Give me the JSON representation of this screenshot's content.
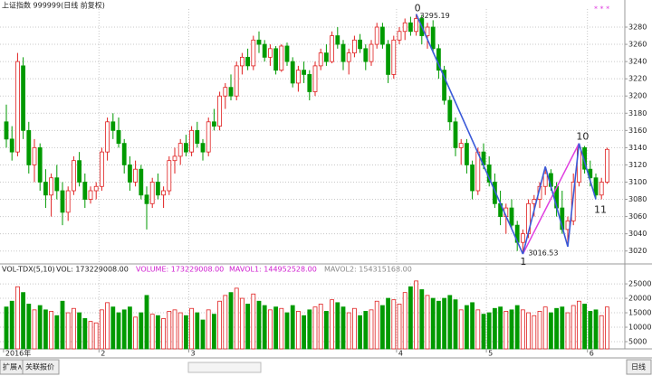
{
  "header": {
    "title": "上证指数 999999(日线 前复权)",
    "marks": "* * *"
  },
  "chart_data": {
    "type": "candlestick",
    "ylim": [
      3005,
      3301
    ],
    "yticks": [
      3020,
      3040,
      3060,
      3080,
      3100,
      3120,
      3140,
      3160,
      3180,
      3200,
      3220,
      3240,
      3260,
      3280
    ],
    "grid": true,
    "up_color": "#e02020",
    "down_color": "#009a00",
    "wave_labels": [
      "0",
      "1",
      "10",
      "11"
    ],
    "categories": [
      "2016年",
      null,
      null,
      null,
      null,
      null,
      null,
      null,
      null,
      null,
      null,
      null,
      null,
      null,
      null,
      null,
      null,
      "2",
      null,
      null,
      null,
      null,
      null,
      null,
      null,
      null,
      null,
      null,
      null,
      null,
      null,
      null,
      null,
      "3",
      null,
      null,
      null,
      null,
      null,
      null,
      null,
      null,
      null,
      null,
      null,
      null,
      null,
      null,
      null,
      null,
      null,
      null,
      null,
      null,
      null,
      null,
      null,
      null,
      null,
      null,
      null,
      null,
      null,
      null,
      null,
      null,
      null,
      null,
      null,
      null,
      "4",
      null,
      null,
      null,
      null,
      null,
      null,
      null,
      null,
      null,
      null,
      null,
      null,
      null,
      null,
      null,
      "5",
      null,
      null,
      null,
      null,
      null,
      null,
      null,
      null,
      null,
      null,
      null,
      null,
      null,
      null,
      null,
      null,
      null,
      "6",
      null,
      null,
      null
    ],
    "candles": [
      [
        3170,
        3190,
        3140,
        3150
      ],
      [
        3150,
        3165,
        3125,
        3135
      ],
      [
        3135,
        3250,
        3130,
        3240
      ],
      [
        3235,
        3245,
        3150,
        3160
      ],
      [
        3160,
        3170,
        3110,
        3120
      ],
      [
        3120,
        3150,
        3100,
        3140
      ],
      [
        3140,
        3145,
        3090,
        3100
      ],
      [
        3100,
        3115,
        3070,
        3085
      ],
      [
        3085,
        3110,
        3060,
        3105
      ],
      [
        3105,
        3120,
        3080,
        3090
      ],
      [
        3090,
        3100,
        3050,
        3065
      ],
      [
        3065,
        3095,
        3055,
        3090
      ],
      [
        3090,
        3130,
        3085,
        3125
      ],
      [
        3125,
        3135,
        3095,
        3100
      ],
      [
        3100,
        3110,
        3070,
        3080
      ],
      [
        3080,
        3095,
        3075,
        3090
      ],
      [
        3090,
        3100,
        3080,
        3095
      ],
      [
        3095,
        3140,
        3090,
        3135
      ],
      [
        3135,
        3175,
        3125,
        3170
      ],
      [
        3170,
        3180,
        3150,
        3160
      ],
      [
        3160,
        3175,
        3140,
        3145
      ],
      [
        3145,
        3150,
        3110,
        3120
      ],
      [
        3120,
        3130,
        3090,
        3100
      ],
      [
        3100,
        3125,
        3095,
        3115
      ],
      [
        3115,
        3120,
        3080,
        3085
      ],
      [
        3085,
        3095,
        3045,
        3075
      ],
      [
        3075,
        3105,
        3070,
        3100
      ],
      [
        3100,
        3110,
        3080,
        3085
      ],
      [
        3085,
        3095,
        3070,
        3090
      ],
      [
        3090,
        3130,
        3085,
        3125
      ],
      [
        3125,
        3140,
        3110,
        3130
      ],
      [
        3130,
        3150,
        3120,
        3145
      ],
      [
        3145,
        3155,
        3130,
        3135
      ],
      [
        3135,
        3165,
        3130,
        3160
      ],
      [
        3160,
        3170,
        3140,
        3145
      ],
      [
        3145,
        3150,
        3125,
        3135
      ],
      [
        3135,
        3175,
        3130,
        3170
      ],
      [
        3170,
        3185,
        3160,
        3165
      ],
      [
        3165,
        3205,
        3160,
        3200
      ],
      [
        3200,
        3215,
        3185,
        3210
      ],
      [
        3210,
        3225,
        3195,
        3200
      ],
      [
        3200,
        3240,
        3195,
        3235
      ],
      [
        3235,
        3250,
        3225,
        3245
      ],
      [
        3245,
        3255,
        3230,
        3235
      ],
      [
        3235,
        3270,
        3230,
        3265
      ],
      [
        3265,
        3275,
        3250,
        3260
      ],
      [
        3260,
        3265,
        3240,
        3245
      ],
      [
        3245,
        3260,
        3235,
        3255
      ],
      [
        3255,
        3258,
        3225,
        3230
      ],
      [
        3230,
        3260,
        3228,
        3258
      ],
      [
        3258,
        3262,
        3235,
        3240
      ],
      [
        3240,
        3245,
        3210,
        3215
      ],
      [
        3215,
        3235,
        3205,
        3230
      ],
      [
        3230,
        3240,
        3215,
        3225
      ],
      [
        3225,
        3230,
        3195,
        3205
      ],
      [
        3205,
        3240,
        3200,
        3235
      ],
      [
        3235,
        3255,
        3230,
        3250
      ],
      [
        3250,
        3260,
        3235,
        3240
      ],
      [
        3240,
        3275,
        3238,
        3270
      ],
      [
        3270,
        3280,
        3255,
        3260
      ],
      [
        3260,
        3265,
        3230,
        3240
      ],
      [
        3240,
        3255,
        3225,
        3250
      ],
      [
        3250,
        3270,
        3245,
        3265
      ],
      [
        3265,
        3272,
        3250,
        3255
      ],
      [
        3255,
        3260,
        3230,
        3240
      ],
      [
        3240,
        3265,
        3235,
        3260
      ],
      [
        3260,
        3285,
        3255,
        3280
      ],
      [
        3280,
        3285,
        3255,
        3260
      ],
      [
        3260,
        3265,
        3215,
        3225
      ],
      [
        3225,
        3270,
        3220,
        3265
      ],
      [
        3265,
        3280,
        3260,
        3275
      ],
      [
        3275,
        3290,
        3265,
        3285
      ],
      [
        3285,
        3292,
        3270,
        3275
      ],
      [
        3275,
        3295.19,
        3270,
        3290
      ],
      [
        3290,
        3294,
        3260,
        3270
      ],
      [
        3270,
        3285,
        3255,
        3280
      ],
      [
        3280,
        3288,
        3250,
        3255
      ],
      [
        3255,
        3260,
        3220,
        3230
      ],
      [
        3230,
        3235,
        3190,
        3195
      ],
      [
        3195,
        3200,
        3160,
        3170
      ],
      [
        3170,
        3175,
        3130,
        3140
      ],
      [
        3140,
        3150,
        3120,
        3145
      ],
      [
        3145,
        3150,
        3110,
        3120
      ],
      [
        3120,
        3125,
        3080,
        3090
      ],
      [
        3090,
        3140,
        3085,
        3135
      ],
      [
        3135,
        3145,
        3115,
        3120
      ],
      [
        3120,
        3130,
        3095,
        3100
      ],
      [
        3100,
        3110,
        3070,
        3075
      ],
      [
        3075,
        3090,
        3050,
        3060
      ],
      [
        3060,
        3075,
        3040,
        3070
      ],
      [
        3070,
        3080,
        3045,
        3050
      ],
      [
        3050,
        3055,
        3020,
        3030
      ],
      [
        3030,
        3045,
        3016.53,
        3040
      ],
      [
        3040,
        3080,
        3035,
        3075
      ],
      [
        3075,
        3085,
        3060,
        3080
      ],
      [
        3080,
        3100,
        3070,
        3095
      ],
      [
        3095,
        3118,
        3085,
        3110
      ],
      [
        3110,
        3115,
        3090,
        3095
      ],
      [
        3095,
        3100,
        3060,
        3070
      ],
      [
        3070,
        3090,
        3040,
        3045
      ],
      [
        3045,
        3060,
        3025,
        3055
      ],
      [
        3055,
        3110,
        3050,
        3100
      ],
      [
        3100,
        3145,
        3095,
        3140
      ],
      [
        3140,
        3142,
        3110,
        3115
      ],
      [
        3115,
        3125,
        3095,
        3105
      ],
      [
        3105,
        3110,
        3080,
        3085
      ],
      [
        3085,
        3105,
        3080,
        3100
      ],
      [
        3100,
        3140,
        3098,
        3138
      ]
    ]
  },
  "volume_chart": {
    "type": "bar",
    "title": "VOL-TDX(5,10)",
    "stats": [
      "VOL: 173229008.00",
      "VOLUME: 173229008.00",
      "MAVOL1: 144952528.00",
      "MAVOL2: 154315168.00"
    ],
    "ylim": [
      2500,
      29400
    ],
    "yticks": [
      5000,
      10000,
      15000,
      20000,
      25000
    ],
    "values": [
      17000,
      19000,
      24000,
      22000,
      18000,
      16000,
      17500,
      16000,
      15500,
      14000,
      19000,
      15000,
      16500,
      15000,
      13000,
      12000,
      11500,
      16000,
      18500,
      17000,
      15000,
      16000,
      17000,
      13500,
      15000,
      21000,
      14500,
      14000,
      13000,
      15500,
      16000,
      15000,
      14000,
      16500,
      15000,
      12500,
      16000,
      14500,
      19000,
      21000,
      22000,
      23500,
      20000,
      18000,
      21500,
      19000,
      17500,
      16000,
      17000,
      16500,
      15000,
      17500,
      15500,
      14000,
      16000,
      17000,
      18000,
      15500,
      19500,
      18500,
      17000,
      15000,
      16500,
      14000,
      15500,
      16000,
      19000,
      17500,
      20000,
      19500,
      18000,
      22000,
      24000,
      26000,
      23000,
      21000,
      20000,
      19000,
      20000,
      21000,
      19500,
      16000,
      17500,
      18500,
      16000,
      14500,
      15000,
      16500,
      17000,
      15500,
      16000,
      17500,
      16000,
      15000,
      14000,
      15500,
      17000,
      15000,
      16500,
      17000,
      15000,
      17500,
      19000,
      18000,
      15500,
      16000,
      14000,
      17000
    ]
  },
  "toolbar": {
    "tabs": [
      "扩展∧",
      "关联报价"
    ],
    "period": "日线"
  }
}
